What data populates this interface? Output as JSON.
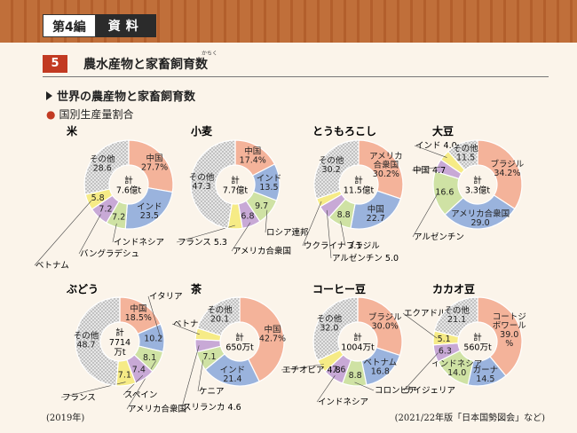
{
  "header": {
    "volume_label": "第4編",
    "section_label": "資料",
    "section_number": "5",
    "section_title": "農水産物と家畜飼育数",
    "ruby": "かちく",
    "subtitle": "世界の農産物と家畜飼育数",
    "subsubtitle": "国別生産量割合",
    "footnote_left": "(2019年)",
    "footnote_right": "(2021/22年版「日本国勢図会」など)"
  },
  "colors": {
    "top_band": "#c06f3a",
    "accent_red": "#c23a22",
    "slice_salmon": "#f4b39a",
    "slice_blue": "#9ab3dd",
    "slice_green": "#cfe2a4",
    "slice_purple": "#c8a9d6",
    "slice_yellow": "#f6eb86",
    "slice_other": "#dcdcdc"
  },
  "chart_data": [
    {
      "type": "pie",
      "title": "米",
      "total_lines": [
        "計",
        "7.6億t"
      ],
      "slices": [
        {
          "label": "中国",
          "value": 27.7,
          "label_text": [
            "中国",
            "27.7%"
          ],
          "color": "salmon",
          "label_pos": "inside"
        },
        {
          "label": "インド",
          "value": 23.5,
          "label_text": [
            "インド",
            "23.5"
          ],
          "color": "blue",
          "label_pos": "inside"
        },
        {
          "label": "インドネシア",
          "value": 7.2,
          "label_text": [
            "7.2"
          ],
          "color": "green",
          "label_pos": "inside",
          "callout": "インドネシア"
        },
        {
          "label": "バングラデシュ",
          "value": 7.2,
          "label_text": [
            "7.2"
          ],
          "color": "purple",
          "label_pos": "inside",
          "callout": "バングラデシュ"
        },
        {
          "label": "ベトナム",
          "value": 5.8,
          "label_text": [
            "5.8"
          ],
          "color": "yellow",
          "label_pos": "inside",
          "callout": "ベトナム"
        },
        {
          "label": "その他",
          "value": 28.6,
          "label_text": [
            "その他",
            "28.6"
          ],
          "color": "other",
          "label_pos": "inside"
        }
      ]
    },
    {
      "type": "pie",
      "title": "小麦",
      "total_lines": [
        "計",
        "7.7億t"
      ],
      "slices": [
        {
          "label": "中国",
          "value": 17.4,
          "label_text": [
            "中国",
            "17.4%"
          ],
          "color": "salmon",
          "label_pos": "inside"
        },
        {
          "label": "インド",
          "value": 13.5,
          "label_text": [
            "インド",
            "13.5"
          ],
          "color": "blue",
          "label_pos": "inside"
        },
        {
          "label": "ロシア連邦",
          "value": 9.7,
          "label_text": [
            "9.7"
          ],
          "color": "green",
          "label_pos": "inside",
          "callout": "ロシア連邦"
        },
        {
          "label": "アメリカ合衆国",
          "value": 6.8,
          "label_text": [
            "6.8"
          ],
          "color": "purple",
          "label_pos": "inside",
          "callout": "アメリカ合衆国"
        },
        {
          "label": "フランス",
          "value": 5.3,
          "label_text": [],
          "color": "yellow",
          "label_pos": "none",
          "callout": "フランス 5.3"
        },
        {
          "label": "その他",
          "value": 47.3,
          "label_text": [
            "その他",
            "47.3"
          ],
          "color": "other",
          "label_pos": "inside"
        }
      ]
    },
    {
      "type": "pie",
      "title": "とうもろこし",
      "total_lines": [
        "計",
        "11.5億t"
      ],
      "slices": [
        {
          "label": "アメリカ合衆国",
          "value": 30.2,
          "label_text": [
            "アメリカ",
            "合衆国",
            "30.2%"
          ],
          "color": "salmon",
          "label_pos": "inside"
        },
        {
          "label": "中国",
          "value": 22.7,
          "label_text": [
            "中国",
            "22.7"
          ],
          "color": "blue",
          "label_pos": "inside"
        },
        {
          "label": "ブラジル",
          "value": 8.8,
          "label_text": [
            "8.8"
          ],
          "color": "green",
          "label_pos": "inside",
          "callout": "ブラジル"
        },
        {
          "label": "アルゼンチン",
          "value": 5.0,
          "label_text": [],
          "color": "purple",
          "label_pos": "none",
          "callout": "アルゼンチン 5.0"
        },
        {
          "label": "ウクライナ",
          "value": 3.1,
          "label_text": [],
          "color": "yellow",
          "label_pos": "none",
          "callout": "ウクライナ 3.1"
        },
        {
          "label": "その他",
          "value": 30.2,
          "label_text": [
            "その他",
            "30.2"
          ],
          "color": "other",
          "label_pos": "inside"
        }
      ]
    },
    {
      "type": "pie",
      "title": "大豆",
      "total_lines": [
        "計",
        "3.3億t"
      ],
      "slices": [
        {
          "label": "ブラジル",
          "value": 34.2,
          "label_text": [
            "ブラジル",
            "34.2%"
          ],
          "color": "salmon",
          "label_pos": "inside"
        },
        {
          "label": "アメリカ合衆国",
          "value": 29.0,
          "label_text": [
            "アメリカ合衆国",
            "29.0"
          ],
          "color": "blue",
          "label_pos": "inside"
        },
        {
          "label": "アルゼンチン",
          "value": 16.6,
          "label_text": [
            "16.6"
          ],
          "color": "green",
          "label_pos": "inside",
          "callout": "アルゼンチン"
        },
        {
          "label": "中国",
          "value": 4.7,
          "label_text": [],
          "color": "purple",
          "label_pos": "none",
          "callout": "中国 4.7"
        },
        {
          "label": "インド",
          "value": 4.0,
          "label_text": [],
          "color": "yellow",
          "label_pos": "none",
          "callout": "インド 4.0"
        },
        {
          "label": "その他",
          "value": 11.5,
          "label_text": [
            "その他",
            "11.5"
          ],
          "color": "other",
          "label_pos": "inside"
        }
      ]
    },
    {
      "type": "pie",
      "title": "ぶどう",
      "total_lines": [
        "計",
        "7714",
        "万t"
      ],
      "slices": [
        {
          "label": "中国",
          "value": 18.5,
          "label_text": [
            "中国",
            "18.5%"
          ],
          "color": "salmon",
          "label_pos": "inside"
        },
        {
          "label": "イタリア",
          "value": 10.2,
          "label_text": [
            "10.2"
          ],
          "color": "blue",
          "label_pos": "inside",
          "callout": "イタリア"
        },
        {
          "label": "アメリカ合衆国",
          "value": 8.1,
          "label_text": [
            "8.1"
          ],
          "color": "green",
          "label_pos": "inside",
          "callout": "アメリカ合衆国"
        },
        {
          "label": "スペイン",
          "value": 7.4,
          "label_text": [
            "7.4"
          ],
          "color": "purple",
          "label_pos": "inside",
          "callout": "スペイン"
        },
        {
          "label": "フランス",
          "value": 7.1,
          "label_text": [
            "7.1"
          ],
          "color": "yellow",
          "label_pos": "inside",
          "callout": "フランス"
        },
        {
          "label": "その他",
          "value": 48.7,
          "label_text": [
            "その他",
            "48.7"
          ],
          "color": "other",
          "label_pos": "inside"
        }
      ]
    },
    {
      "type": "pie",
      "title": "茶",
      "total_lines": [
        "計",
        "650万t"
      ],
      "slices": [
        {
          "label": "中国",
          "value": 42.7,
          "label_text": [
            "中国",
            "42.7%"
          ],
          "color": "salmon",
          "label_pos": "inside"
        },
        {
          "label": "インド",
          "value": 21.4,
          "label_text": [
            "インド",
            "21.4"
          ],
          "color": "blue",
          "label_pos": "inside"
        },
        {
          "label": "ケニア",
          "value": 7.1,
          "label_text": [
            "7.1"
          ],
          "color": "green",
          "label_pos": "inside",
          "callout": "ケニア"
        },
        {
          "label": "スリランカ",
          "value": 4.6,
          "label_text": [],
          "color": "purple",
          "label_pos": "none",
          "callout": "スリランカ 4.6"
        },
        {
          "label": "ベトナム",
          "value": 4.1,
          "label_text": [],
          "color": "yellow",
          "label_pos": "none",
          "callout": "ベトナム 4.1"
        },
        {
          "label": "その他",
          "value": 20.1,
          "label_text": [
            "その他",
            "20.1"
          ],
          "color": "other",
          "label_pos": "inside"
        }
      ]
    },
    {
      "type": "pie",
      "title": "コーヒー豆",
      "total_lines": [
        "計",
        "1004万t"
      ],
      "slices": [
        {
          "label": "ブラジル",
          "value": 30.0,
          "label_text": [
            "ブラジル",
            "30.0%"
          ],
          "color": "salmon",
          "label_pos": "inside"
        },
        {
          "label": "ベトナム",
          "value": 16.8,
          "label_text": [
            "ベトナム",
            "16.8"
          ],
          "color": "blue",
          "label_pos": "inside"
        },
        {
          "label": "コロンビア",
          "value": 8.8,
          "label_text": [
            "8.8"
          ],
          "color": "green",
          "label_pos": "inside",
          "callout": "コロンビア"
        },
        {
          "label": "インドネシア",
          "value": 7.6,
          "label_text": [
            "7.6"
          ],
          "color": "purple",
          "label_pos": "inside",
          "callout": "インドネシア"
        },
        {
          "label": "エチオピア",
          "value": 4.8,
          "label_text": [],
          "color": "yellow",
          "label_pos": "none",
          "callout": "エチオピア 4.8"
        },
        {
          "label": "その他",
          "value": 32.0,
          "label_text": [
            "その他",
            "32.0"
          ],
          "color": "other",
          "label_pos": "inside"
        }
      ]
    },
    {
      "type": "pie",
      "title": "カカオ豆",
      "total_lines": [
        "計",
        "560万t"
      ],
      "slices": [
        {
          "label": "コートジボワール",
          "value": 39.0,
          "label_text": [
            "コートジ",
            "ボワール",
            "39.0",
            "%"
          ],
          "color": "salmon",
          "label_pos": "inside"
        },
        {
          "label": "ガーナ",
          "value": 14.5,
          "label_text": [
            "ガーナ",
            "14.5"
          ],
          "color": "blue",
          "label_pos": "inside"
        },
        {
          "label": "インドネシア",
          "value": 14.0,
          "label_text": [
            "インドネシア",
            "14.0"
          ],
          "color": "green",
          "label_pos": "inside"
        },
        {
          "label": "ナイジェリア",
          "value": 6.3,
          "label_text": [
            "6.3"
          ],
          "color": "purple",
          "label_pos": "inside",
          "callout": "ナイジェリア"
        },
        {
          "label": "エクアドル",
          "value": 5.1,
          "label_text": [
            "5.1"
          ],
          "color": "yellow",
          "label_pos": "inside",
          "callout": "エクアドル"
        },
        {
          "label": "その他",
          "value": 21.1,
          "label_text": [
            "その他",
            "21.1"
          ],
          "color": "other",
          "label_pos": "inside"
        }
      ]
    }
  ]
}
